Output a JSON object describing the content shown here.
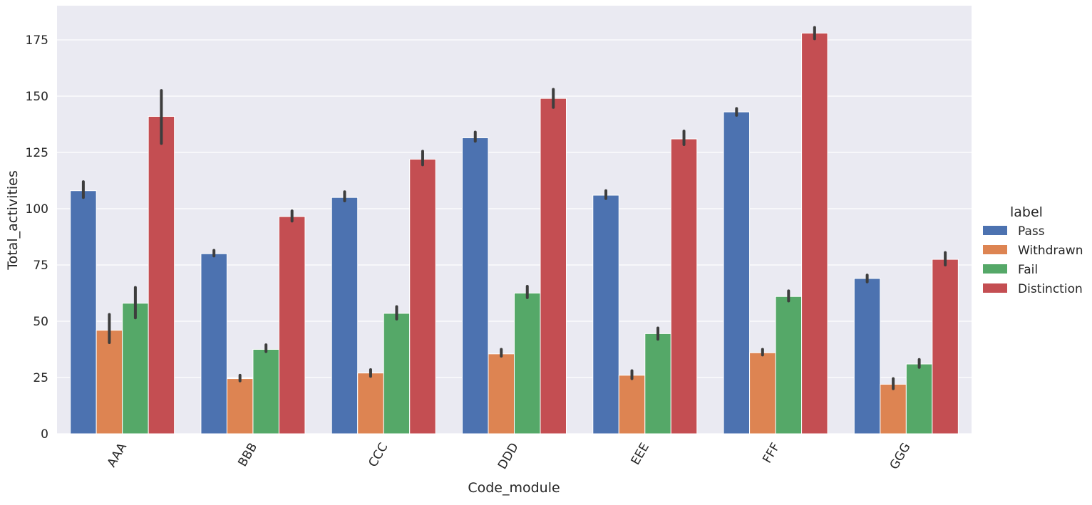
{
  "chart_data": {
    "type": "bar",
    "title": "",
    "xlabel": "Code_module",
    "ylabel": "Total_activities",
    "categories": [
      "AAA",
      "BBB",
      "CCC",
      "DDD",
      "EEE",
      "FFF",
      "GGG"
    ],
    "yticks": [
      0,
      25,
      50,
      75,
      100,
      125,
      150,
      175
    ],
    "ylim": [
      0,
      188
    ],
    "grid": true,
    "legend": {
      "title": "label",
      "placement": "right"
    },
    "series": [
      {
        "name": "Pass",
        "color": "#4c72b0",
        "values": [
          108,
          80,
          105,
          131.5,
          106,
          143,
          69
        ],
        "err_low": [
          105,
          79,
          103.5,
          130,
          104.5,
          141.5,
          67.5
        ],
        "err_high": [
          112,
          81.5,
          107.5,
          134,
          108,
          144.5,
          70.5
        ]
      },
      {
        "name": "Withdrawn",
        "color": "#dd8452",
        "values": [
          46,
          24.5,
          27,
          35.5,
          26,
          36,
          22
        ],
        "err_low": [
          40.5,
          23.5,
          25.5,
          34.5,
          24.5,
          35,
          20
        ],
        "err_high": [
          53,
          26,
          28.5,
          37.5,
          28,
          37.5,
          24.5
        ]
      },
      {
        "name": "Fail",
        "color": "#55a868",
        "values": [
          58,
          37.5,
          53.5,
          62.5,
          44.5,
          61,
          31
        ],
        "err_low": [
          51.5,
          36.5,
          51,
          60.5,
          42,
          59,
          29.5
        ],
        "err_high": [
          65,
          39.5,
          56.5,
          65.5,
          47,
          63.5,
          33
        ]
      },
      {
        "name": "Distinction",
        "color": "#c44e52",
        "values": [
          141,
          96.5,
          122,
          149,
          131,
          178,
          77.5
        ],
        "err_low": [
          129,
          94.5,
          119.5,
          145,
          128.5,
          175.5,
          75
        ],
        "err_high": [
          152.5,
          99,
          125.5,
          153,
          134.5,
          180.5,
          80.5
        ]
      }
    ]
  }
}
